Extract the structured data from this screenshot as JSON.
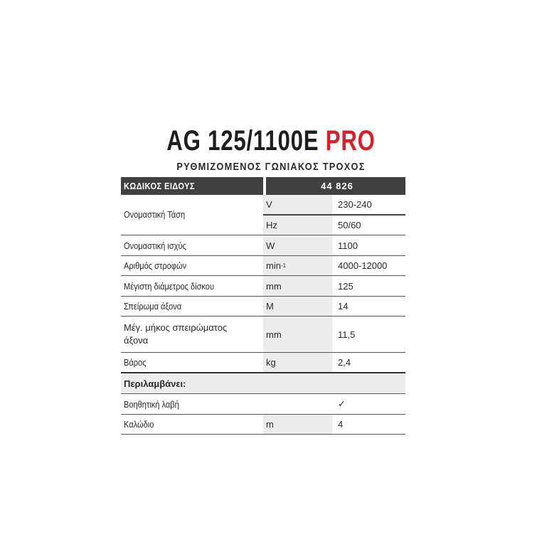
{
  "title": {
    "model": "AG 125/1100E",
    "suffix": "PRO"
  },
  "subtitle": "ΡΥΘΜΙΖΟΜΕΝΟΣ ΓΩΝΙΑΚΟΣ ΤΡΟΧΟΣ",
  "colors": {
    "accent": "#d6202a",
    "header_bg": "#404040",
    "unit_bg": "#ececec"
  },
  "table": {
    "header": {
      "label": "ΚΩΔΙΚΟΣ ΕΙΔΟΥΣ",
      "value": "44 826"
    },
    "voltage": {
      "label": "Ονομαστική Τάση",
      "unit1": "V",
      "value1": "230-240",
      "unit2": "Hz",
      "value2": "50/60"
    },
    "rows": [
      {
        "label": "Ονομαστική ισχύς",
        "unit": "W",
        "value": "1100"
      },
      {
        "label": "Αριθμός στροφών",
        "unit": "min",
        "unit_sup": "-1",
        "value": "4000-12000"
      },
      {
        "label": "Μέγιστη διάμετρος δίσκου",
        "unit": "mm",
        "value": "125"
      },
      {
        "label": "Σπείρωμα άξονα",
        "unit": "M",
        "value": "14"
      },
      {
        "label": "Μέγ. μήκος σπειρώματος άξονα",
        "unit": "mm",
        "value": "11,5"
      },
      {
        "label": "Βάρος",
        "unit": "kg",
        "value": "2,4"
      }
    ],
    "includes_label": "Περιλαμβάνει:",
    "includes": [
      {
        "label": "Βοηθητική λαβή",
        "unit": "",
        "value": "✓",
        "icon": "checkmark-icon"
      },
      {
        "label": "Καλώδιο",
        "unit": "m",
        "value": "4"
      }
    ]
  }
}
